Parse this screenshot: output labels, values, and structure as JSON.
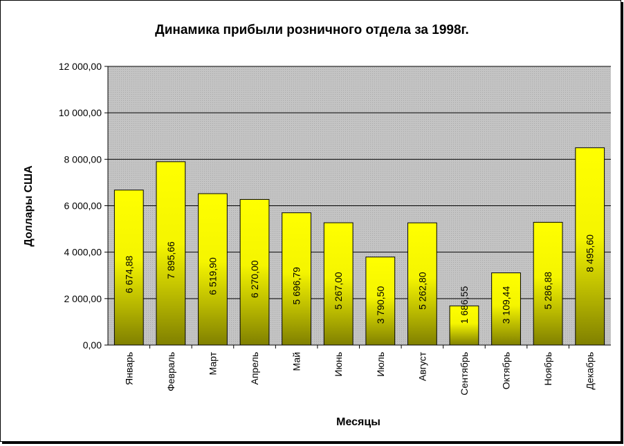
{
  "chart_data": {
    "type": "bar",
    "title": "Динамика прибыли розничного отдела за 1998г.",
    "xlabel": "Месяцы",
    "ylabel": "Доллары США",
    "ylim": [
      0,
      12000
    ],
    "yticks": [
      0,
      2000,
      4000,
      6000,
      8000,
      10000,
      12000
    ],
    "ytick_labels": [
      "0,00",
      "2 000,00",
      "4 000,00",
      "6 000,00",
      "8 000,00",
      "10 000,00",
      "12 000,00"
    ],
    "categories": [
      "Январь",
      "Февраль",
      "Март",
      "Апрель",
      "Май",
      "Июнь",
      "Июль",
      "Август",
      "Сентябрь",
      "Октябрь",
      "Ноябрь",
      "Декабрь"
    ],
    "values": [
      6674.88,
      7895.66,
      6519.9,
      6270.0,
      5696.79,
      5267.0,
      3790.5,
      5262.8,
      1686.55,
      3109.44,
      5286.88,
      8495.6
    ],
    "data_labels": [
      "6 674,88",
      "7 895,66",
      "6 519,90",
      "6 270,00",
      "5 696,79",
      "5 267,00",
      "3 790,50",
      "5 262,80",
      "1 686,55",
      "3 109,44",
      "5 286,88",
      "8 495,60"
    ],
    "grid": true,
    "legend": "none",
    "colors": {
      "bar_top": "#ffff00",
      "bar_bottom": "#808000",
      "plot_background": "#c0c0c0",
      "gridline": "#000000"
    }
  }
}
